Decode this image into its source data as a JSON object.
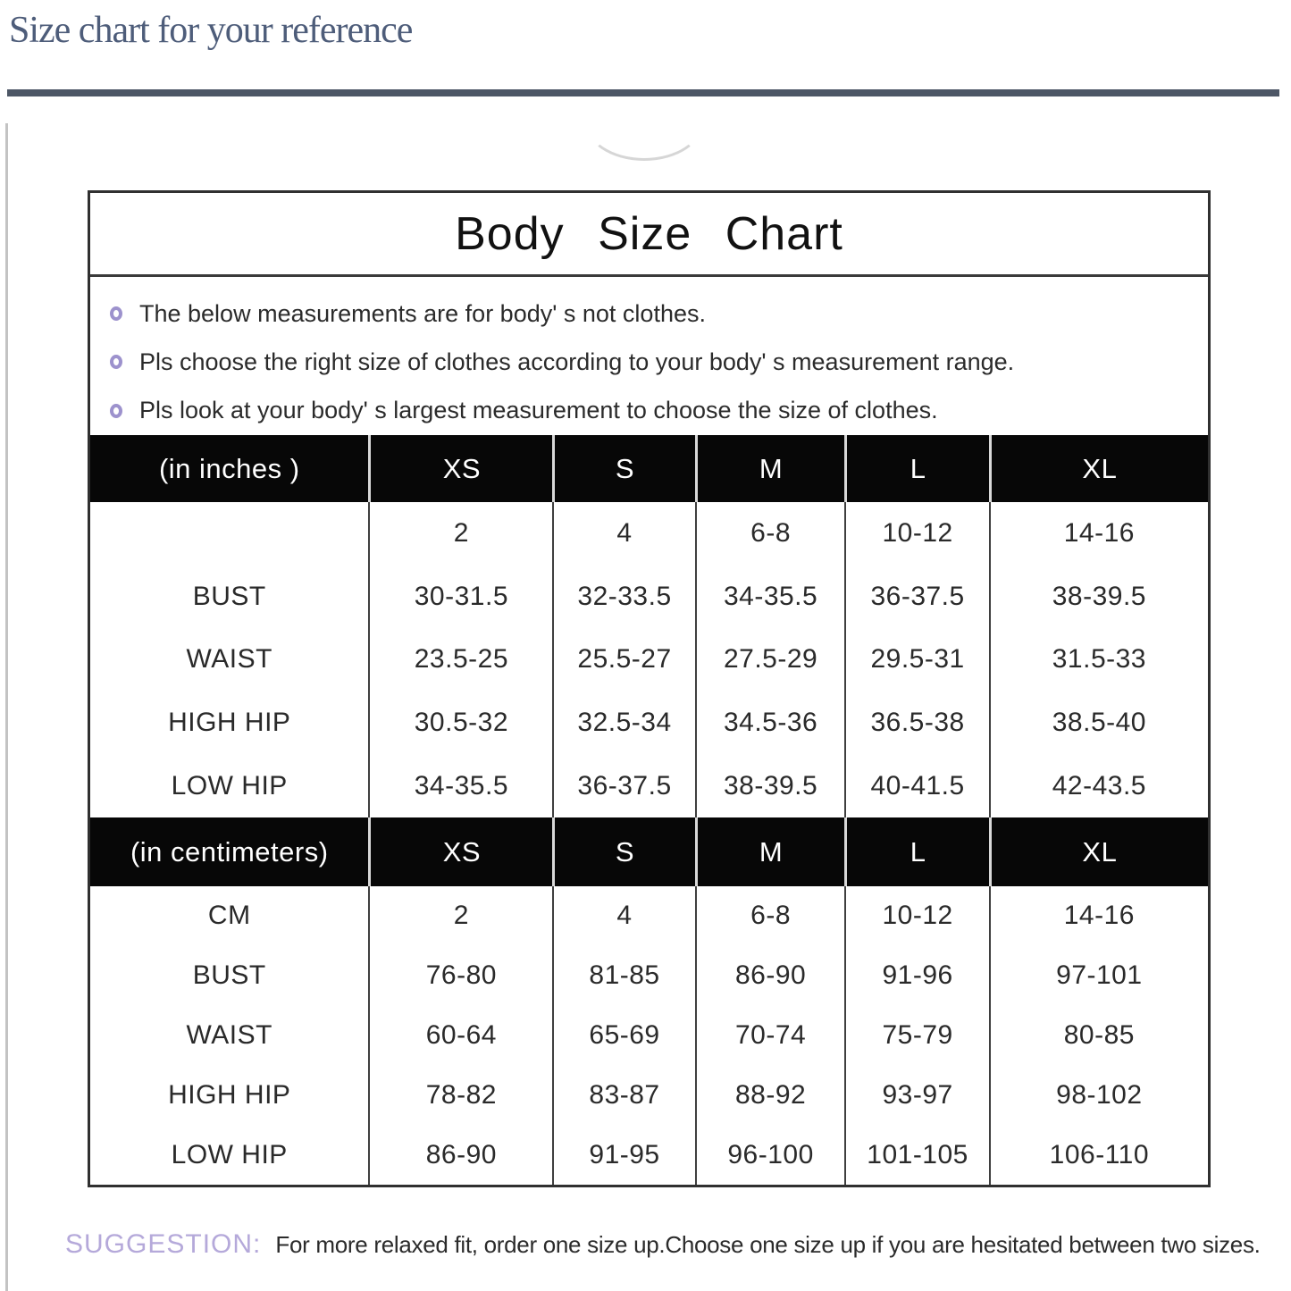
{
  "page": {
    "title": "Size chart for your reference",
    "suggestion_label": "SUGGESTION:",
    "suggestion_text": "For more relaxed fit, order one size up.Choose one size up if you are hesitated between two sizes."
  },
  "chart": {
    "title": "Body Size Chart",
    "notes": [
      "The below measurements are for  body' s not clothes.",
      "Pls choose the right size of clothes according to your body' s  measurement range.",
      "Pls look  at your body' s  largest measurement to choose the size of clothes."
    ],
    "inches": {
      "header": [
        "(in  inches )",
        "XS",
        "S",
        "M",
        "L",
        "XL"
      ],
      "rows": [
        {
          "label": "",
          "values": [
            "2",
            "4",
            "6-8",
            "10-12",
            "14-16"
          ]
        },
        {
          "label": "BUST",
          "values": [
            "30-31.5",
            "32-33.5",
            "34-35.5",
            "36-37.5",
            "38-39.5"
          ]
        },
        {
          "label": "WAIST",
          "values": [
            "23.5-25",
            "25.5-27",
            "27.5-29",
            "29.5-31",
            "31.5-33"
          ]
        },
        {
          "label": "HIGH HIP",
          "values": [
            "30.5-32",
            "32.5-34",
            "34.5-36",
            "36.5-38",
            "38.5-40"
          ]
        },
        {
          "label": "LOW HIP",
          "values": [
            "34-35.5",
            "36-37.5",
            "38-39.5",
            "40-41.5",
            "42-43.5"
          ]
        }
      ]
    },
    "centimeters": {
      "header": [
        "(in centimeters)",
        "XS",
        "S",
        "M",
        "L",
        "XL"
      ],
      "rows": [
        {
          "label": "CM",
          "values": [
            "2",
            "4",
            "6-8",
            "10-12",
            "14-16"
          ]
        },
        {
          "label": "BUST",
          "values": [
            "76-80",
            "81-85",
            "86-90",
            "91-96",
            "97-101"
          ]
        },
        {
          "label": "WAIST",
          "values": [
            "60-64",
            "65-69",
            "70-74",
            "75-79",
            "80-85"
          ]
        },
        {
          "label": "HIGH HIP",
          "values": [
            "78-82",
            "83-87",
            "88-92",
            "93-97",
            "98-102"
          ]
        },
        {
          "label": "LOW HIP",
          "values": [
            "86-90",
            "91-95",
            "96-100",
            "101-105",
            "106-110"
          ]
        }
      ]
    }
  }
}
